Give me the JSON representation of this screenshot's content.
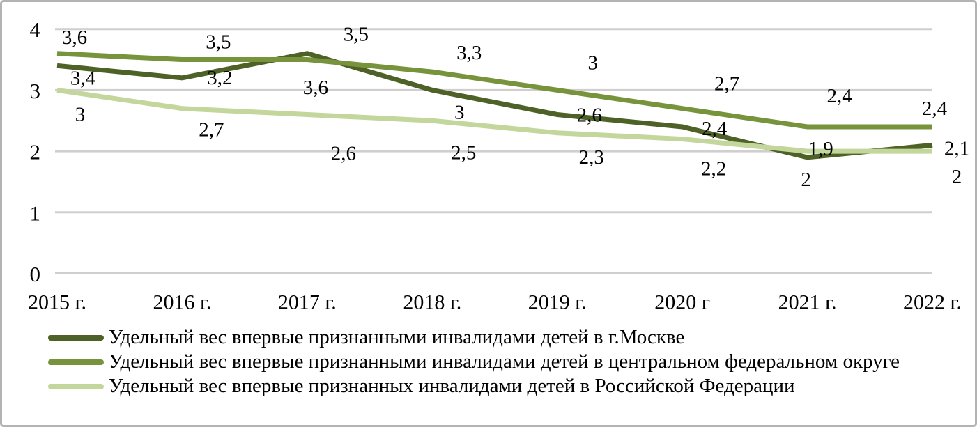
{
  "chart_data": {
    "type": "line",
    "title": "",
    "categories": [
      "2015 г.",
      "2016 г.",
      "2017 г.",
      "2018 г.",
      "2019 г.",
      "2020 г",
      "2021 г.",
      "2022 г."
    ],
    "y_axis": {
      "min": 0,
      "max": 4,
      "ticks": [
        0,
        1,
        2,
        3,
        4
      ],
      "tick_labels": [
        "0",
        "1",
        "2",
        "3",
        "4"
      ],
      "grid": true
    },
    "legend_position": "bottom-left",
    "grid_color": "#d0cece",
    "series": [
      {
        "name": "Удельный вес впервые признанными инвалидами детей в г.Москве",
        "color": "#4E6228",
        "values": [
          3.4,
          3.2,
          3.6,
          3,
          2.6,
          2.4,
          1.9,
          2.1
        ],
        "point_labels": [
          "3,4",
          "3,2",
          "3,6",
          "3",
          "2,6",
          "2,4",
          "1,9",
          "2,1"
        ]
      },
      {
        "name": "Удельный вес впервые признанными инвалидами детей в центральном федеральном округе",
        "color": "#77933C",
        "values": [
          3.6,
          3.5,
          3.5,
          3.3,
          3,
          2.7,
          2.4,
          2.4
        ],
        "point_labels": [
          "3,6",
          "3,5",
          "3,5",
          "3,3",
          "3",
          "2,7",
          "2,4",
          "2,4"
        ]
      },
      {
        "name": "Удельный вес впервые признанных инвалидами детей в Российской Федерации",
        "color": "#C3D69B",
        "values": [
          3,
          2.7,
          2.6,
          2.5,
          2.3,
          2.2,
          2,
          2
        ],
        "point_labels": [
          "3",
          "2,7",
          "2,6",
          "2,5",
          "2,3",
          "2,2",
          "2",
          "2"
        ]
      }
    ]
  }
}
